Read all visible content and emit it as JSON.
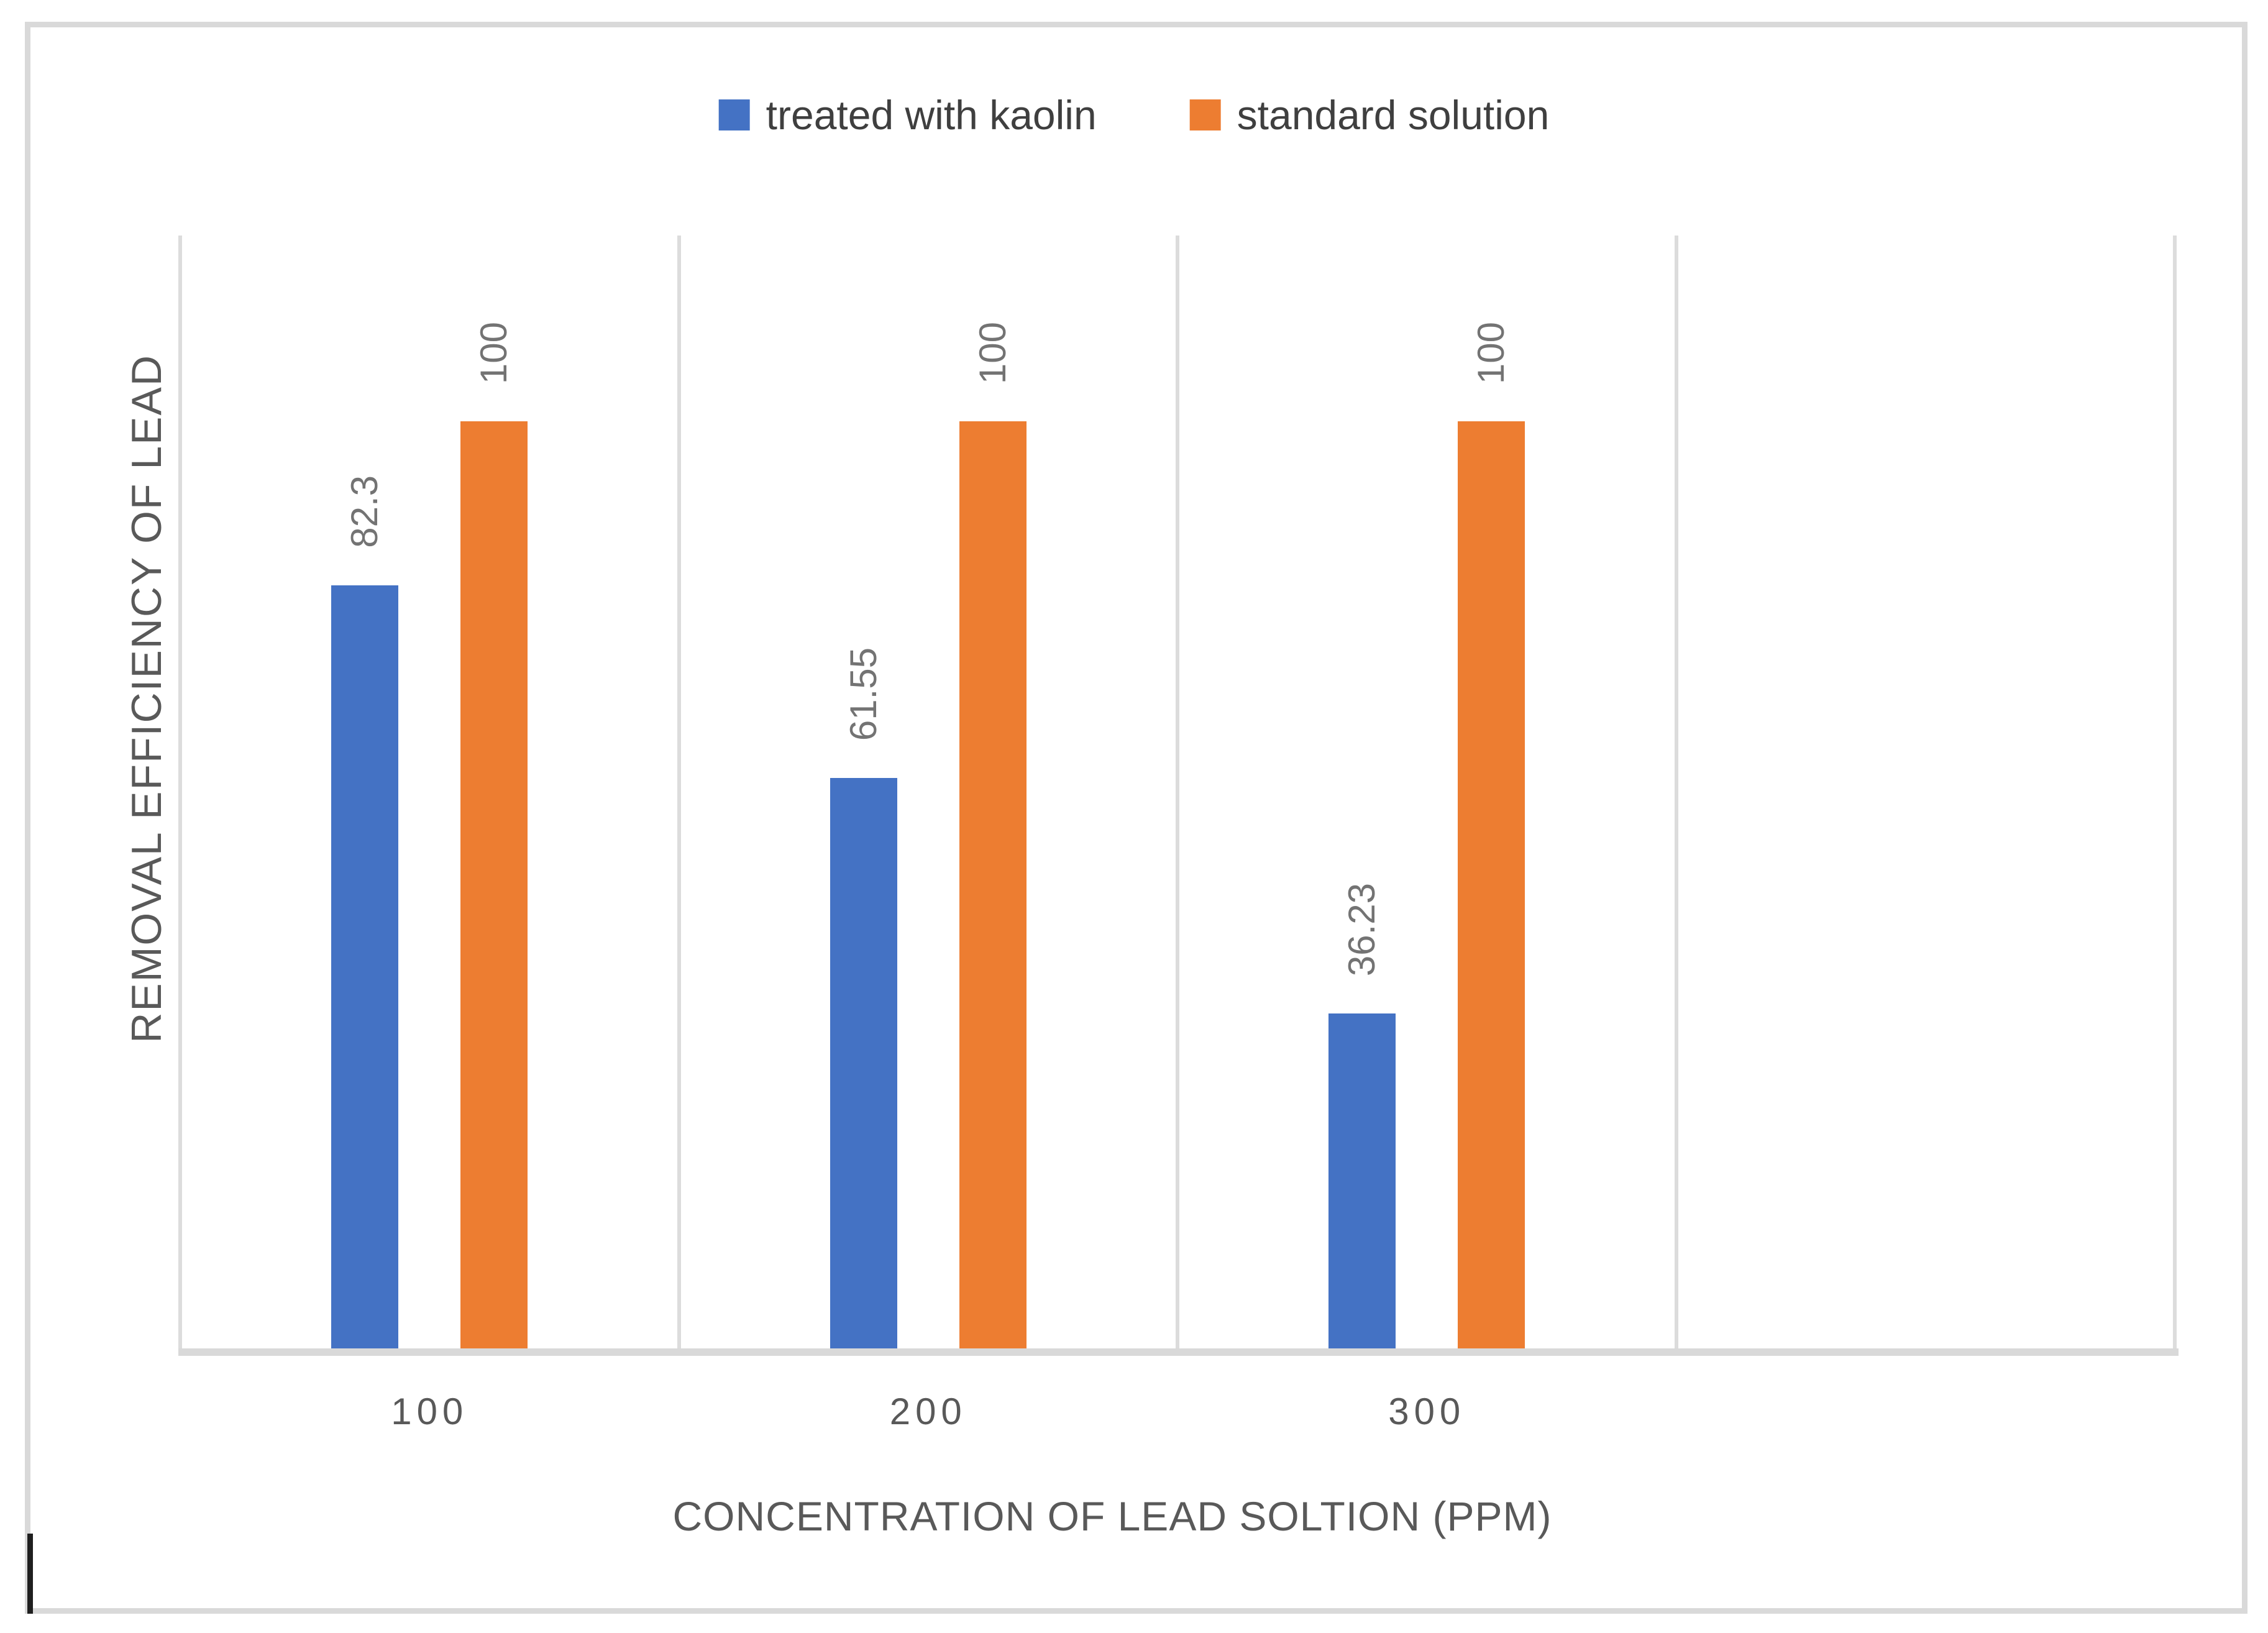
{
  "legend": {
    "items": [
      {
        "label": "treated with kaolin",
        "color": "#4472c4"
      },
      {
        "label": "standard solution",
        "color": "#ed7d31"
      }
    ]
  },
  "axes": {
    "x_title": "CONCENTRATION OF LEAD SOLTION (PPM)",
    "y_title": "REMOVAL EFFICIENCY OF LEAD",
    "x_ticks": [
      "100",
      "200",
      "300"
    ]
  },
  "chart_data": {
    "type": "bar",
    "title": "",
    "categories": [
      "100",
      "200",
      "300"
    ],
    "series": [
      {
        "name": "treated with kaolin",
        "color": "#4472c4",
        "values": [
          82.3,
          61.55,
          36.23
        ],
        "labels": [
          "82.3",
          "61.55",
          "36.23"
        ]
      },
      {
        "name": "standard solution",
        "color": "#ed7d31",
        "values": [
          100,
          100,
          100
        ],
        "labels": [
          "100",
          "100",
          "100"
        ]
      }
    ],
    "xlabel": "CONCENTRATION OF LEAD SOLTION (PPM)",
    "ylabel": "REMOVAL EFFICIENCY OF LEAD",
    "ylim": [
      0,
      120
    ],
    "value_axis_labels_visible": false,
    "data_labels_rotated": true,
    "legend_position": "top",
    "gridlines": "vertical-category-boundaries",
    "empty_fourth_slot": true
  },
  "colors": {
    "frame": "#d9d9d9",
    "gridline": "#dcdcdc",
    "baseline": "#d9d9d9",
    "legend_text": "#3f3f3f",
    "axis_text": "#595959",
    "data_label_text": "#737373",
    "artifact": "#1f1f1f"
  }
}
